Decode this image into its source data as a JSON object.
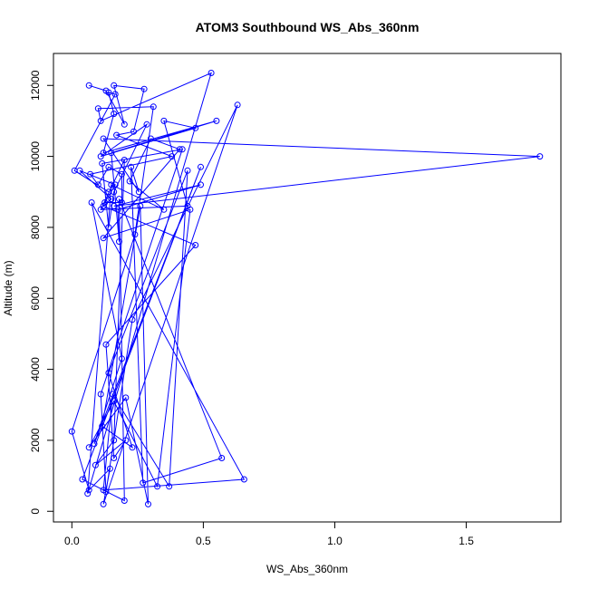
{
  "chart_data": {
    "type": "line",
    "title": "ATOM3 Southbound WS_Abs_360nm",
    "xlabel": "WS_Abs_360nm",
    "ylabel": "Altitude (m)",
    "xlim": [
      -0.07,
      1.86
    ],
    "ylim": [
      -300,
      12900
    ],
    "x_ticks": [
      0.0,
      0.5,
      1.0,
      1.5
    ],
    "x_tick_labels": [
      "0.0",
      "0.5",
      "1.0",
      "1.5"
    ],
    "y_ticks": [
      0,
      2000,
      4000,
      6000,
      8000,
      10000,
      12000
    ],
    "y_tick_labels": [
      "0",
      "2000",
      "4000",
      "6000",
      "8000",
      "10000",
      "12000"
    ],
    "grid": false,
    "line_color": "#0000ff",
    "marker": "open-circle",
    "series": [
      {
        "x": [
          0.065,
          0.13,
          0.2,
          0.16,
          0.275,
          0.235,
          0.17,
          0.38,
          0.07,
          0.1,
          0.14,
          0.19,
          0.19,
          0.125,
          0.165,
          0.03,
          0.15,
          0.12,
          0.47,
          0.13,
          0.16,
          0.205,
          0.09,
          0.16,
          0.2,
          0.11,
          0.44,
          0.35,
          0.47,
          0.11,
          0.285,
          0.16,
          0.14,
          0.115,
          0.42,
          0.11,
          0.13,
          0.23,
          0.63,
          0.12,
          0.145,
          0.065,
          0.0,
          0.24,
          0.31,
          0.1,
          0.11,
          0.53,
          0.06,
          0.15,
          0.35,
          0.22,
          0.3,
          0.41,
          0.12,
          0.45,
          0.325,
          0.16,
          0.065,
          0.205,
          0.29,
          0.26,
          0.115,
          0.23,
          0.14,
          0.44,
          0.37,
          0.155,
          0.12,
          0.655,
          0.075,
          0.19,
          0.085,
          0.49,
          0.04,
          0.2,
          0.18,
          0.57,
          0.27,
          0.225,
          0.255,
          0.12,
          1.78,
          0.16,
          0.49,
          0.175,
          0.18,
          0.15,
          0.55,
          0.12,
          0.16,
          0.14,
          0.165,
          0.01,
          0.14
        ],
        "y": [
          12000,
          11850,
          10900,
          12000,
          11900,
          10700,
          10600,
          10000,
          9500,
          9200,
          9700,
          9500,
          8700,
          8700,
          9200,
          9600,
          8800,
          8600,
          7500,
          4700,
          1500,
          2000,
          1300,
          2000,
          9900,
          8500,
          8600,
          11000,
          10800,
          10000,
          10900,
          9000,
          8000,
          9800,
          10200,
          3300,
          550,
          5400,
          11450,
          200,
          1200,
          600,
          2250,
          7800,
          11400,
          11350,
          11000,
          12350,
          500,
          9200,
          8500,
          9300,
          10500,
          10200,
          7700,
          8500,
          700,
          3100,
          1800,
          3200,
          200,
          8600,
          2400,
          1800,
          3900,
          9600,
          700,
          3300,
          600,
          900,
          8700,
          4300,
          1900,
          9700,
          900,
          300,
          8800,
          1500,
          800,
          9700,
          9000,
          10500,
          10000,
          8600,
          9200,
          8500,
          7600,
          10100,
          11000,
          10100,
          11200,
          11800,
          11750,
          9600,
          9000
        ]
      }
    ]
  }
}
